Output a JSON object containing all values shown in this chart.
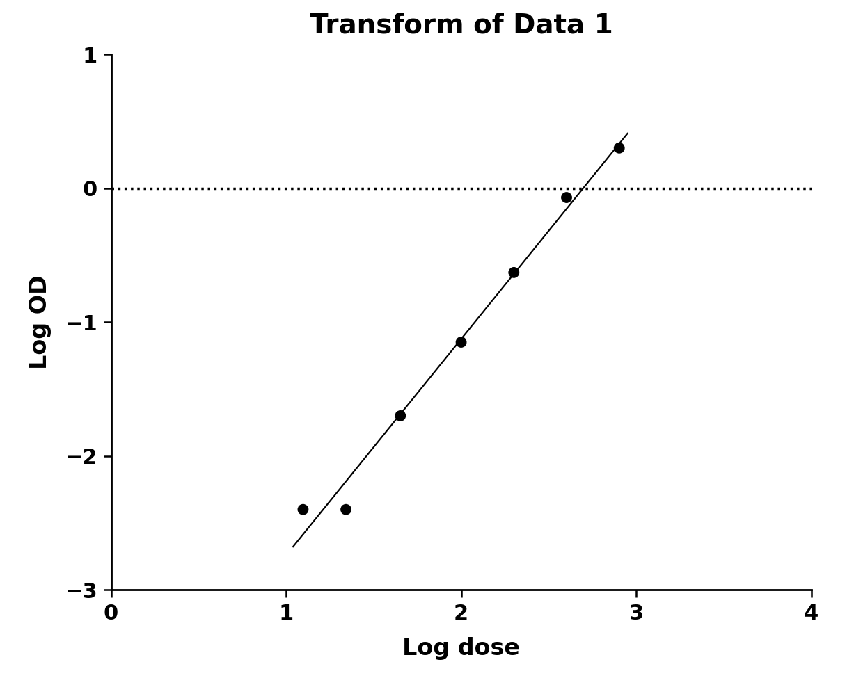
{
  "title": "Transform of Data 1",
  "xlabel": "Log dose",
  "ylabel": "Log OD",
  "xlim": [
    0,
    4
  ],
  "ylim": [
    -3,
    1
  ],
  "xticks": [
    0,
    1,
    2,
    3,
    4
  ],
  "yticks": [
    -3,
    -2,
    -1,
    0,
    1
  ],
  "scatter_x": [
    1.097,
    1.342,
    1.653,
    2.0,
    2.301,
    2.602,
    2.903
  ],
  "scatter_y": [
    -2.4,
    -2.4,
    -1.7,
    -1.15,
    -0.63,
    -0.07,
    0.3
  ],
  "line_x_start": 1.04,
  "line_x_end": 2.95,
  "dotted_y": 0,
  "background_color": "#ffffff",
  "spine_color": "#000000",
  "title_fontsize": 28,
  "label_fontsize": 24,
  "tick_fontsize": 22,
  "marker_size": 130,
  "line_color": "#000000",
  "line_width": 1.6,
  "marker_color": "#000000",
  "dotted_line_color": "#000000",
  "dotted_linewidth": 2.5
}
